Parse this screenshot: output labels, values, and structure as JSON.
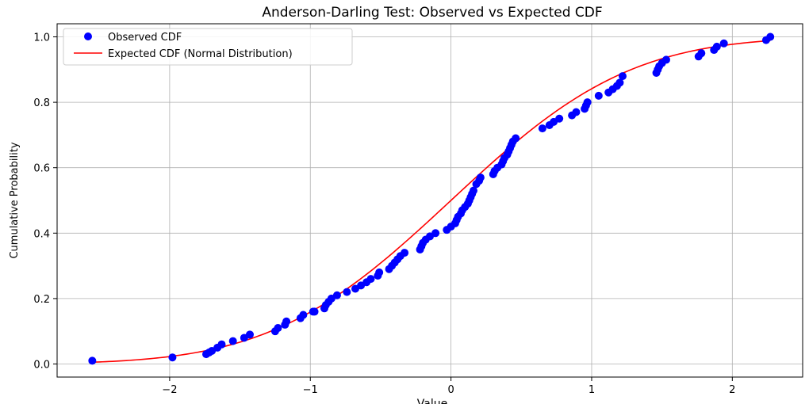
{
  "chart_data": {
    "type": "scatter",
    "title": "Anderson-Darling Test: Observed vs Expected CDF",
    "xlabel": "Value",
    "ylabel": "Cumulative Probability",
    "xlim": [
      -2.8,
      2.5
    ],
    "ylim": [
      -0.04,
      1.04
    ],
    "x_ticks": [
      -2,
      -1,
      0,
      1,
      2
    ],
    "x_tick_labels": [
      "−2",
      "−1",
      "0",
      "1",
      "2"
    ],
    "y_ticks": [
      0.0,
      0.2,
      0.4,
      0.6,
      0.8,
      1.0
    ],
    "y_tick_labels": [
      "0.0",
      "0.2",
      "0.4",
      "0.6",
      "0.8",
      "1.0"
    ],
    "grid": true,
    "legend_position": "top-left",
    "series": [
      {
        "name": "Observed CDF",
        "kind": "scatter",
        "color": "#0000ff",
        "x": [
          -2.55,
          -1.98,
          -1.74,
          -1.72,
          -1.7,
          -1.66,
          -1.63,
          -1.55,
          -1.47,
          -1.43,
          -1.25,
          -1.23,
          -1.18,
          -1.17,
          -1.07,
          -1.05,
          -0.98,
          -0.97,
          -0.9,
          -0.89,
          -0.87,
          -0.85,
          -0.81,
          -0.74,
          -0.68,
          -0.64,
          -0.6,
          -0.57,
          -0.52,
          -0.51,
          -0.44,
          -0.42,
          -0.4,
          -0.38,
          -0.36,
          -0.33,
          -0.22,
          -0.21,
          -0.2,
          -0.18,
          -0.15,
          -0.11,
          -0.03,
          0.0,
          0.03,
          0.04,
          0.05,
          0.07,
          0.08,
          0.1,
          0.12,
          0.13,
          0.14,
          0.15,
          0.16,
          0.18,
          0.2,
          0.21,
          0.3,
          0.31,
          0.33,
          0.36,
          0.37,
          0.38,
          0.4,
          0.41,
          0.42,
          0.43,
          0.44,
          0.46,
          0.65,
          0.7,
          0.73,
          0.77,
          0.86,
          0.89,
          0.95,
          0.96,
          0.97,
          1.05,
          1.12,
          1.15,
          1.18,
          1.2,
          1.22,
          1.46,
          1.47,
          1.48,
          1.5,
          1.53,
          1.76,
          1.78,
          1.87,
          1.89,
          1.94,
          2.24,
          2.27
        ],
        "y": [
          0.01,
          0.02,
          0.03,
          0.035,
          0.04,
          0.05,
          0.06,
          0.07,
          0.08,
          0.09,
          0.1,
          0.11,
          0.12,
          0.13,
          0.14,
          0.15,
          0.16,
          0.16,
          0.17,
          0.18,
          0.19,
          0.2,
          0.21,
          0.22,
          0.23,
          0.24,
          0.25,
          0.26,
          0.27,
          0.28,
          0.29,
          0.3,
          0.31,
          0.32,
          0.33,
          0.34,
          0.35,
          0.36,
          0.37,
          0.38,
          0.39,
          0.4,
          0.41,
          0.42,
          0.43,
          0.44,
          0.45,
          0.46,
          0.47,
          0.48,
          0.49,
          0.5,
          0.51,
          0.52,
          0.53,
          0.55,
          0.56,
          0.57,
          0.58,
          0.59,
          0.6,
          0.61,
          0.62,
          0.63,
          0.64,
          0.65,
          0.66,
          0.67,
          0.68,
          0.69,
          0.72,
          0.73,
          0.74,
          0.75,
          0.76,
          0.77,
          0.78,
          0.79,
          0.8,
          0.82,
          0.83,
          0.84,
          0.85,
          0.86,
          0.88,
          0.89,
          0.9,
          0.91,
          0.92,
          0.93,
          0.94,
          0.95,
          0.96,
          0.97,
          0.98,
          0.99,
          1.0
        ]
      },
      {
        "name": "Expected CDF (Normal Distribution)",
        "kind": "line",
        "color": "#ff0000",
        "distribution": "normal",
        "mean": 0.0,
        "std": 1.0
      }
    ]
  }
}
